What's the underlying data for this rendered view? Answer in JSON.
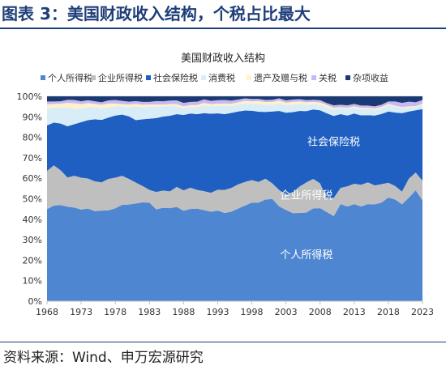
{
  "figure": {
    "title": "图表 3：美国财政收入结构，个税占比最大",
    "source": "资料来源：Wind、申万宏源研究"
  },
  "chart_data": {
    "type": "area",
    "stacked": true,
    "title": "美国财政收入结构",
    "xlabel": "",
    "ylabel": "",
    "ylim": [
      0,
      100
    ],
    "y_ticks": [
      "0%",
      "10%",
      "20%",
      "30%",
      "40%",
      "50%",
      "60%",
      "70%",
      "80%",
      "90%",
      "100%"
    ],
    "x_ticks": [
      "1968",
      "1973",
      "1978",
      "1983",
      "1988",
      "1993",
      "1998",
      "2003",
      "2008",
      "2013",
      "2018",
      "2023"
    ],
    "x_range": [
      1968,
      2023
    ],
    "grid": true,
    "legend_position": "top",
    "x": [
      1968,
      1969,
      1970,
      1971,
      1972,
      1973,
      1974,
      1975,
      1976,
      1977,
      1978,
      1979,
      1980,
      1981,
      1982,
      1983,
      1984,
      1985,
      1986,
      1987,
      1988,
      1989,
      1990,
      1991,
      1992,
      1993,
      1994,
      1995,
      1996,
      1997,
      1998,
      1999,
      2000,
      2001,
      2002,
      2003,
      2004,
      2005,
      2006,
      2007,
      2008,
      2009,
      2010,
      2011,
      2012,
      2013,
      2014,
      2015,
      2016,
      2017,
      2018,
      2019,
      2020,
      2021,
      2022,
      2023
    ],
    "series": [
      {
        "name": "个人所得税",
        "color": "#4f86d1",
        "values": [
          44.9,
          46.7,
          46.9,
          46.1,
          45.7,
          44.7,
          45.2,
          43.9,
          44.2,
          44.3,
          45.3,
          47.0,
          47.2,
          47.7,
          48.2,
          48.1,
          44.8,
          45.6,
          45.4,
          46.0,
          44.1,
          45.0,
          45.2,
          44.4,
          43.7,
          44.2,
          43.1,
          43.7,
          45.2,
          46.7,
          48.1,
          48.1,
          49.6,
          49.9,
          46.3,
          44.5,
          43.0,
          43.1,
          43.3,
          45.3,
          45.4,
          43.5,
          41.5,
          47.4,
          46.2,
          47.4,
          46.2,
          47.4,
          47.3,
          48.1,
          50.6,
          49.6,
          47.3,
          50.5,
          54.1,
          49.2
        ]
      },
      {
        "name": "企业所得税",
        "color": "#bfbfbf",
        "values": [
          18.7,
          19.6,
          17.0,
          14.3,
          15.5,
          15.6,
          14.7,
          14.6,
          13.8,
          15.4,
          15.0,
          14.2,
          12.5,
          10.2,
          8.0,
          6.2,
          8.5,
          8.4,
          8.2,
          9.8,
          10.0,
          10.4,
          9.1,
          9.3,
          9.2,
          10.2,
          11.2,
          11.6,
          11.8,
          11.5,
          11.0,
          10.1,
          10.2,
          7.6,
          8.0,
          7.4,
          10.1,
          12.9,
          14.7,
          14.4,
          12.1,
          6.6,
          8.9,
          7.9,
          9.9,
          9.9,
          10.6,
          10.6,
          9.2,
          9.0,
          7.2,
          6.6,
          6.2,
          9.3,
          8.7,
          9.6
        ]
      },
      {
        "name": "社会保险税",
        "color": "#1f5fc1",
        "values": [
          22.2,
          20.9,
          22.8,
          25.0,
          25.2,
          27.1,
          28.5,
          30.3,
          30.5,
          29.9,
          30.3,
          29.9,
          30.5,
          30.5,
          32.6,
          34.8,
          36.1,
          36.1,
          36.9,
          35.5,
          36.8,
          36.2,
          37.0,
          38.1,
          38.6,
          37.3,
          37.0,
          36.6,
          35.6,
          34.9,
          33.9,
          34.3,
          32.6,
          35.1,
          38.6,
          40.1,
          39.2,
          36.9,
          34.8,
          33.9,
          35.7,
          41.6,
          40.0,
          36.0,
          34.5,
          34.3,
          33.9,
          32.8,
          34.1,
          34.3,
          34.8,
          35.9,
          38.3,
          32.8,
          30.4,
          35.0
        ]
      },
      {
        "name": "消费税",
        "color": "#d9edf9",
        "values": [
          8.4,
          7.2,
          7.8,
          9.1,
          7.5,
          6.7,
          6.4,
          5.9,
          5.7,
          4.9,
          4.5,
          3.9,
          4.6,
          6.8,
          5.8,
          5.9,
          5.6,
          5.0,
          4.8,
          3.8,
          3.4,
          3.2,
          3.4,
          3.7,
          3.7,
          3.7,
          4.0,
          3.4,
          3.4,
          3.5,
          3.4,
          3.7,
          3.4,
          3.3,
          3.6,
          3.7,
          3.7,
          3.4,
          3.1,
          2.6,
          2.7,
          2.9,
          3.1,
          3.0,
          3.2,
          2.8,
          3.1,
          3.0,
          2.9,
          2.8,
          3.0,
          2.8,
          2.5,
          1.9,
          1.5,
          2.1
        ]
      },
      {
        "name": "遗产及赠与税",
        "color": "#fff2c9",
        "values": [
          1.9,
          1.9,
          1.9,
          2.3,
          2.7,
          2.1,
          1.9,
          1.6,
          1.7,
          2.0,
          1.4,
          1.2,
          1.2,
          1.1,
          1.3,
          1.0,
          1.0,
          0.9,
          0.9,
          1.1,
          0.8,
          0.9,
          1.1,
          1.3,
          1.0,
          1.0,
          1.2,
          1.1,
          1.1,
          1.2,
          1.2,
          1.5,
          1.4,
          1.4,
          1.4,
          1.2,
          1.3,
          1.2,
          1.2,
          1.1,
          1.1,
          1.1,
          0.9,
          0.4,
          0.6,
          0.7,
          0.6,
          0.6,
          0.6,
          0.6,
          0.7,
          0.5,
          0.5,
          0.6,
          0.5,
          0.5
        ]
      },
      {
        "name": "关税",
        "color": "#c9b9f2",
        "values": [
          1.4,
          1.2,
          1.2,
          1.5,
          1.6,
          1.4,
          1.4,
          1.3,
          1.2,
          1.5,
          1.7,
          1.6,
          1.4,
          1.4,
          1.4,
          1.3,
          1.7,
          1.6,
          1.7,
          1.8,
          1.7,
          1.6,
          1.6,
          1.7,
          1.6,
          1.7,
          1.7,
          1.5,
          1.3,
          1.2,
          1.1,
          1.0,
          1.0,
          1.0,
          1.1,
          1.1,
          1.1,
          1.1,
          1.0,
          1.0,
          1.1,
          1.0,
          1.2,
          1.2,
          1.2,
          1.2,
          1.1,
          1.1,
          1.0,
          1.1,
          1.2,
          2.1,
          2.0,
          2.3,
          1.9,
          1.8
        ]
      },
      {
        "name": "杂项收益",
        "color": "#1b3a73",
        "values": [
          2.5,
          2.5,
          2.4,
          1.7,
          1.8,
          2.4,
          1.9,
          2.4,
          2.9,
          2.0,
          1.8,
          2.2,
          2.6,
          2.3,
          2.7,
          2.7,
          2.3,
          2.4,
          2.1,
          2.0,
          3.2,
          2.7,
          2.6,
          1.5,
          2.2,
          1.9,
          1.8,
          2.1,
          1.6,
          1.0,
          1.3,
          1.3,
          1.8,
          1.7,
          1.0,
          2.0,
          1.6,
          1.4,
          1.9,
          1.7,
          1.9,
          3.3,
          4.4,
          4.1,
          4.4,
          3.7,
          4.5,
          4.5,
          4.9,
          4.1,
          2.5,
          2.5,
          3.2,
          2.6,
          2.9,
          1.8
        ]
      }
    ],
    "annotations": [
      {
        "text": "社会保险税",
        "x": 2010,
        "y": 76
      },
      {
        "text": "企业所得税",
        "x": 2006,
        "y": 50
      },
      {
        "text": "个人所得税",
        "x": 2006,
        "y": 21
      }
    ]
  }
}
